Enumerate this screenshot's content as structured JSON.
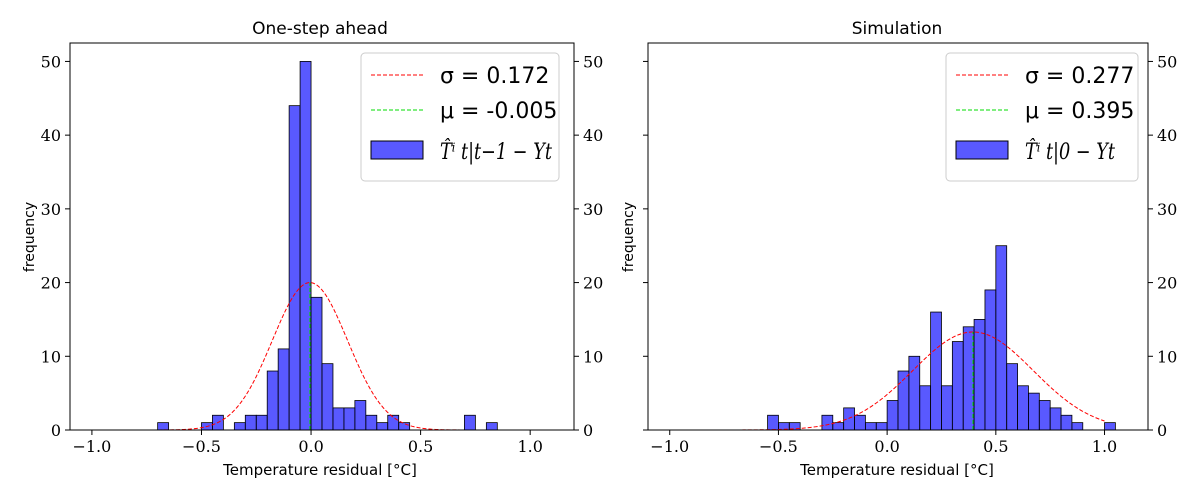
{
  "chart_data": [
    {
      "type": "histogram",
      "title": "One-step ahead",
      "xlabel": "Temperature residual [°C]",
      "ylabel": "frequency",
      "xlim": [
        -1.1,
        1.2
      ],
      "ylim": [
        0,
        52.5
      ],
      "xticks": [
        -1.0,
        -0.5,
        0.0,
        0.5,
        1.0
      ],
      "xtick_labels": [
        "−1.0",
        "−0.5",
        "0.0",
        "0.5",
        "1.0"
      ],
      "yticks": [
        0,
        10,
        20,
        30,
        40,
        50
      ],
      "ytick_labels": [
        "0",
        "10",
        "20",
        "30",
        "40",
        "50"
      ],
      "bin_width": 0.05,
      "bins": [
        {
          "x0": -0.7,
          "count": 1
        },
        {
          "x0": -0.5,
          "count": 1
        },
        {
          "x0": -0.45,
          "count": 2
        },
        {
          "x0": -0.35,
          "count": 1
        },
        {
          "x0": -0.3,
          "count": 2
        },
        {
          "x0": -0.25,
          "count": 2
        },
        {
          "x0": -0.2,
          "count": 8
        },
        {
          "x0": -0.15,
          "count": 11
        },
        {
          "x0": -0.1,
          "count": 44
        },
        {
          "x0": -0.05,
          "count": 50
        },
        {
          "x0": 0.0,
          "count": 18
        },
        {
          "x0": 0.05,
          "count": 9
        },
        {
          "x0": 0.1,
          "count": 3
        },
        {
          "x0": 0.15,
          "count": 3
        },
        {
          "x0": 0.2,
          "count": 4
        },
        {
          "x0": 0.25,
          "count": 2
        },
        {
          "x0": 0.3,
          "count": 1
        },
        {
          "x0": 0.35,
          "count": 2
        },
        {
          "x0": 0.4,
          "count": 1
        },
        {
          "x0": 0.7,
          "count": 2
        },
        {
          "x0": 0.8,
          "count": 1
        }
      ],
      "normal_curve": {
        "mu": -0.005,
        "sigma": 0.172,
        "peak": 20,
        "x_range": [
          -1.0,
          1.0
        ],
        "color": "#ff0000"
      },
      "mean_line": {
        "x": -0.005,
        "height": 20,
        "color": "#00dd00"
      },
      "bar_color": "#0000ff",
      "legend": {
        "placement": "top-right",
        "sigma_label": "σ = 0.172",
        "mu_label": "μ = -0.005",
        "hist_label": "T̂ⁱ t|t−1 − Yt"
      }
    },
    {
      "type": "histogram",
      "title": "Simulation",
      "xlabel": "Temperature residual [°C]",
      "ylabel": "frequency",
      "xlim": [
        -1.1,
        1.2
      ],
      "ylim": [
        0,
        52.5
      ],
      "xticks": [
        -1.0,
        -0.5,
        0.0,
        0.5,
        1.0
      ],
      "xtick_labels": [
        "−1.0",
        "−0.5",
        "0.0",
        "0.5",
        "1.0"
      ],
      "yticks": [
        0,
        10,
        20,
        30,
        40,
        50
      ],
      "ytick_labels": [
        "0",
        "10",
        "20",
        "30",
        "40",
        "50"
      ],
      "bin_width": 0.05,
      "bins": [
        {
          "x0": -0.55,
          "count": 2
        },
        {
          "x0": -0.5,
          "count": 1
        },
        {
          "x0": -0.45,
          "count": 1
        },
        {
          "x0": -0.3,
          "count": 2
        },
        {
          "x0": -0.25,
          "count": 1
        },
        {
          "x0": -0.2,
          "count": 3
        },
        {
          "x0": -0.15,
          "count": 2
        },
        {
          "x0": -0.1,
          "count": 1
        },
        {
          "x0": -0.05,
          "count": 1
        },
        {
          "x0": 0.0,
          "count": 4
        },
        {
          "x0": 0.05,
          "count": 8
        },
        {
          "x0": 0.1,
          "count": 10
        },
        {
          "x0": 0.15,
          "count": 6
        },
        {
          "x0": 0.2,
          "count": 16
        },
        {
          "x0": 0.25,
          "count": 6
        },
        {
          "x0": 0.3,
          "count": 12
        },
        {
          "x0": 0.35,
          "count": 14
        },
        {
          "x0": 0.4,
          "count": 15
        },
        {
          "x0": 0.45,
          "count": 19
        },
        {
          "x0": 0.5,
          "count": 25
        },
        {
          "x0": 0.55,
          "count": 9
        },
        {
          "x0": 0.6,
          "count": 6
        },
        {
          "x0": 0.65,
          "count": 5
        },
        {
          "x0": 0.7,
          "count": 4
        },
        {
          "x0": 0.75,
          "count": 3
        },
        {
          "x0": 0.8,
          "count": 2
        },
        {
          "x0": 0.85,
          "count": 1
        },
        {
          "x0": 1.0,
          "count": 1
        }
      ],
      "normal_curve": {
        "mu": 0.395,
        "sigma": 0.277,
        "peak": 13.3,
        "x_range": [
          -1.0,
          1.0
        ],
        "color": "#ff0000"
      },
      "mean_line": {
        "x": 0.395,
        "height": 13.3,
        "color": "#00dd00"
      },
      "bar_color": "#0000ff",
      "legend": {
        "placement": "top-right",
        "sigma_label": "σ = 0.277",
        "mu_label": "μ = 0.395",
        "hist_label": "T̂ⁱ t|0 − Yt"
      }
    }
  ]
}
